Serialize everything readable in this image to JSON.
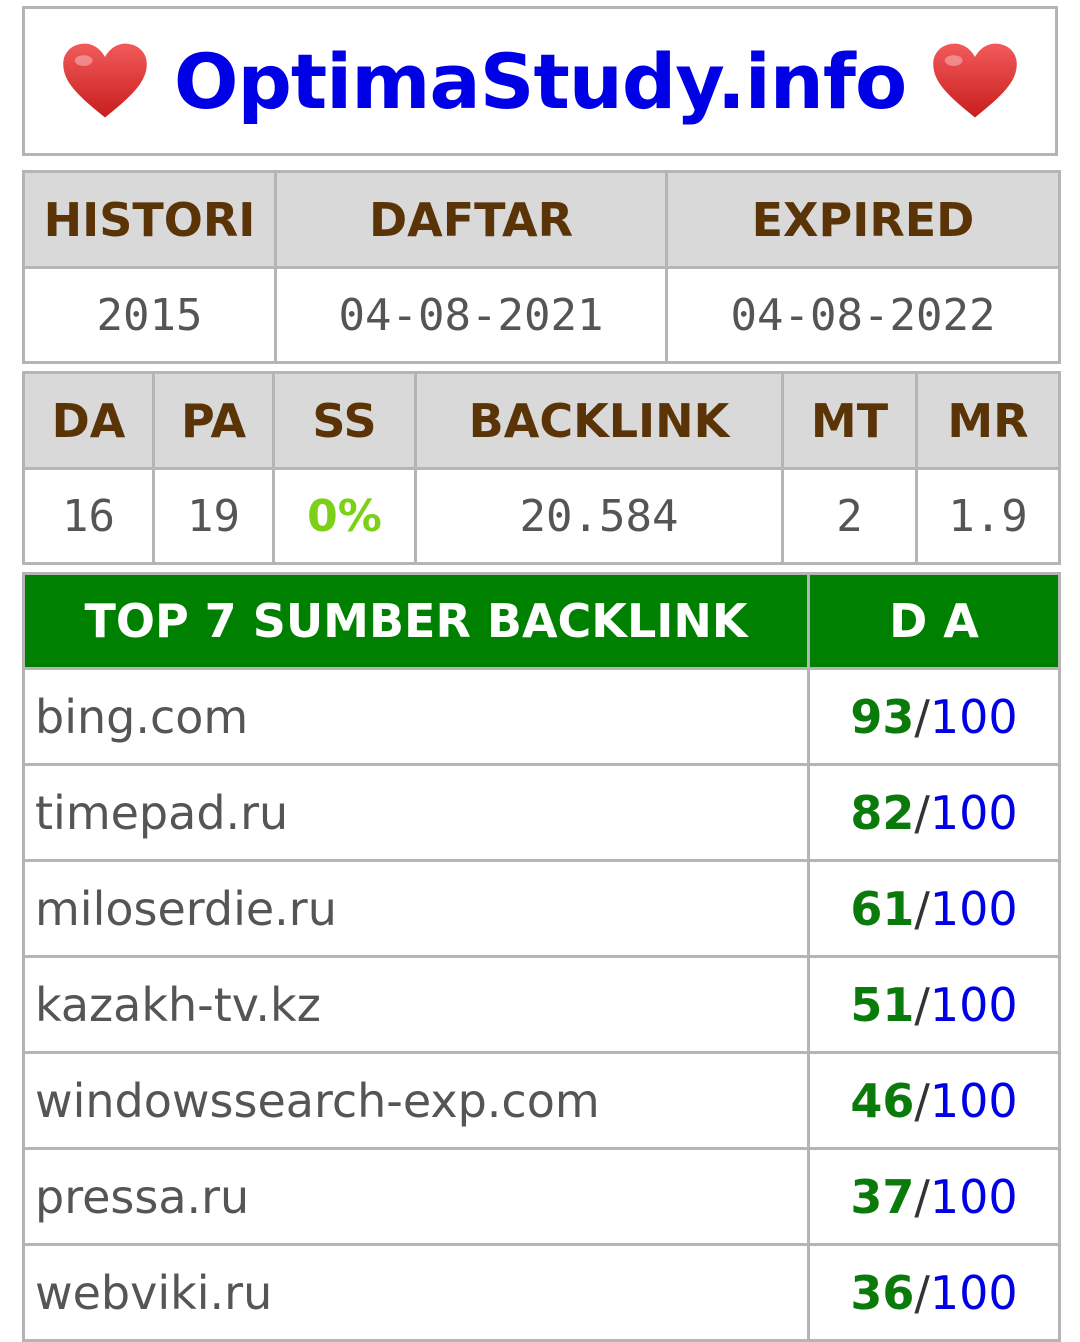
{
  "site": {
    "name": "OptimaStudy.info",
    "heart_color": "#e53935"
  },
  "dates": {
    "headers": [
      "HISTORI",
      "DAFTAR",
      "EXPIRED"
    ],
    "values": [
      "2015",
      "04-08-2021",
      "04-08-2022"
    ]
  },
  "metrics": {
    "headers": [
      "DA",
      "PA",
      "SS",
      "BACKLINK",
      "MT",
      "MR"
    ],
    "values": [
      "16",
      "19",
      "0%",
      "20.584",
      "2",
      "1.9"
    ]
  },
  "backlinks": {
    "header_source": "TOP 7 SUMBER BACKLINK",
    "header_da": "D A",
    "separator": "/",
    "rows": [
      {
        "domain": "bing.com",
        "score": "93",
        "max": "100"
      },
      {
        "domain": "timepad.ru",
        "score": "82",
        "max": "100"
      },
      {
        "domain": "miloserdie.ru",
        "score": "61",
        "max": "100"
      },
      {
        "domain": "kazakh-tv.kz",
        "score": "51",
        "max": "100"
      },
      {
        "domain": "windowssearch-exp.com",
        "score": "46",
        "max": "100"
      },
      {
        "domain": "pressa.ru",
        "score": "37",
        "max": "100"
      },
      {
        "domain": "webviki.ru",
        "score": "36",
        "max": "100"
      }
    ]
  },
  "colors": {
    "title": "#0000e6",
    "header_text": "#5a3306",
    "header_bg": "#d9d9d9",
    "table_header_bg": "#008000",
    "ss_value": "#7cd017",
    "score": "#0a7a0a",
    "score_max": "#0000e6"
  }
}
